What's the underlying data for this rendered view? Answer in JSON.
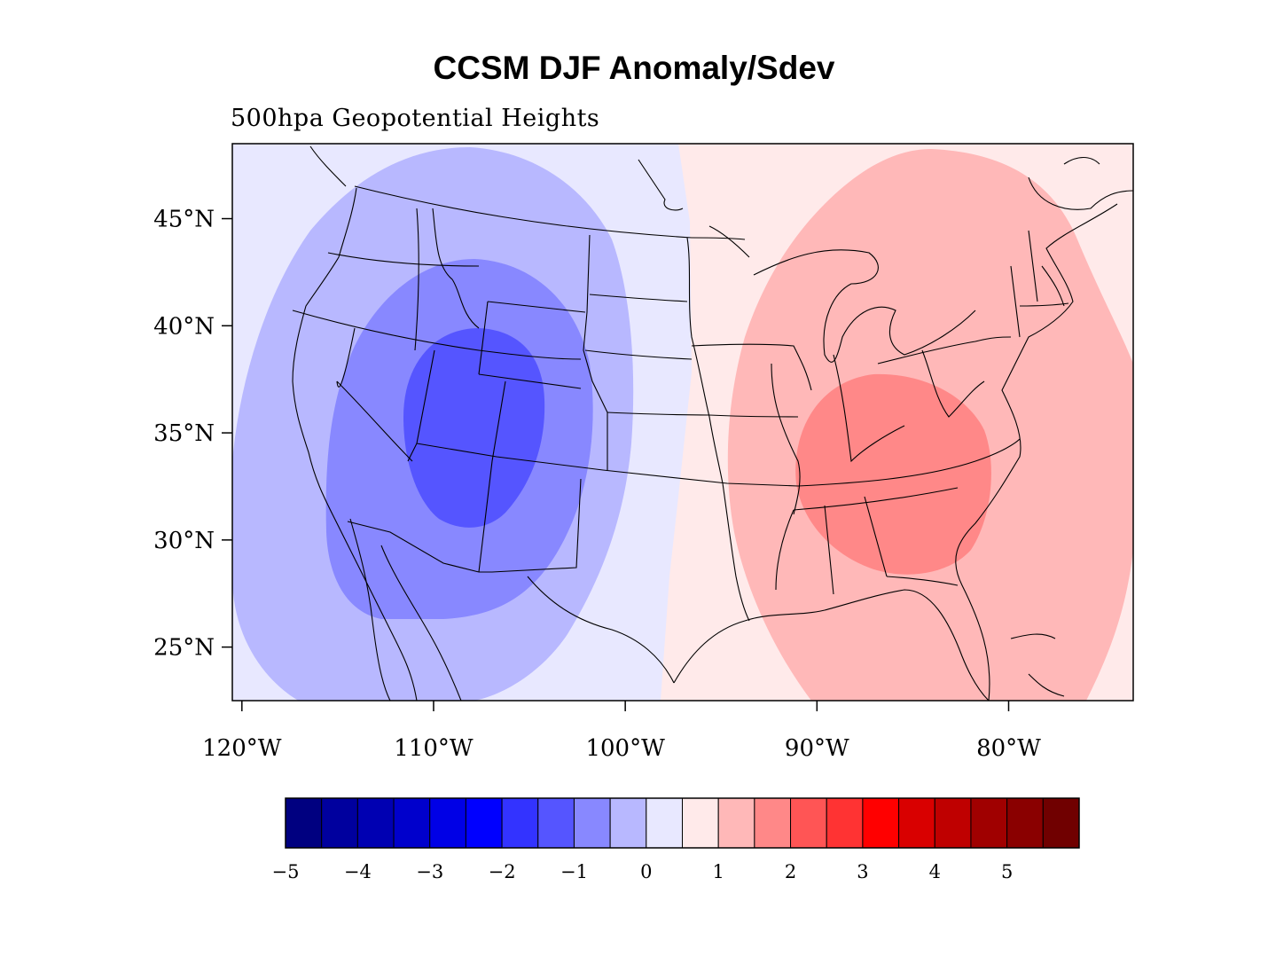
{
  "title": "CCSM DJF Anomaly/Sdev",
  "subtitle": "500hpa Geopotential Heights",
  "map": {
    "lat_ticks": [
      {
        "value": 45,
        "label": "45°N"
      },
      {
        "value": 40,
        "label": "40°N"
      },
      {
        "value": 35,
        "label": "35°N"
      },
      {
        "value": 30,
        "label": "30°N"
      },
      {
        "value": 25,
        "label": "25°N"
      }
    ],
    "lon_ticks": [
      {
        "value": -120,
        "label": "120°W"
      },
      {
        "value": -110,
        "label": "110°W"
      },
      {
        "value": -100,
        "label": "100°W"
      },
      {
        "value": -90,
        "label": "90°W"
      },
      {
        "value": -80,
        "label": "80°W"
      }
    ],
    "lon_range": [
      -120.5,
      -73.5
    ],
    "lat_range": [
      22.5,
      48.5
    ]
  },
  "colorbar": {
    "colors": [
      "#000080",
      "#00009e",
      "#0000b2",
      "#0000cc",
      "#0000e6",
      "#0000ff",
      "#3333ff",
      "#5555ff",
      "#8888ff",
      "#b8b8ff",
      "#e8e8ff",
      "#ffeaea",
      "#ffb8b8",
      "#ff8888",
      "#ff5555",
      "#ff3333",
      "#ff0000",
      "#d90000",
      "#bf0000",
      "#a00000",
      "#8a0000",
      "#700000"
    ],
    "labels": [
      {
        "value": "-5",
        "boundary": 1
      },
      {
        "value": "-4",
        "boundary": 3
      },
      {
        "value": "-3",
        "boundary": 5
      },
      {
        "value": "-2",
        "boundary": 7
      },
      {
        "value": "-1",
        "boundary": 9
      },
      {
        "value": "0",
        "boundary": 11
      },
      {
        "value": "1",
        "boundary": 13
      },
      {
        "value": "2",
        "boundary": 15
      },
      {
        "value": "3",
        "boundary": 17
      },
      {
        "value": "4",
        "boundary": 19
      },
      {
        "value": "5",
        "boundary": 21
      }
    ]
  }
}
